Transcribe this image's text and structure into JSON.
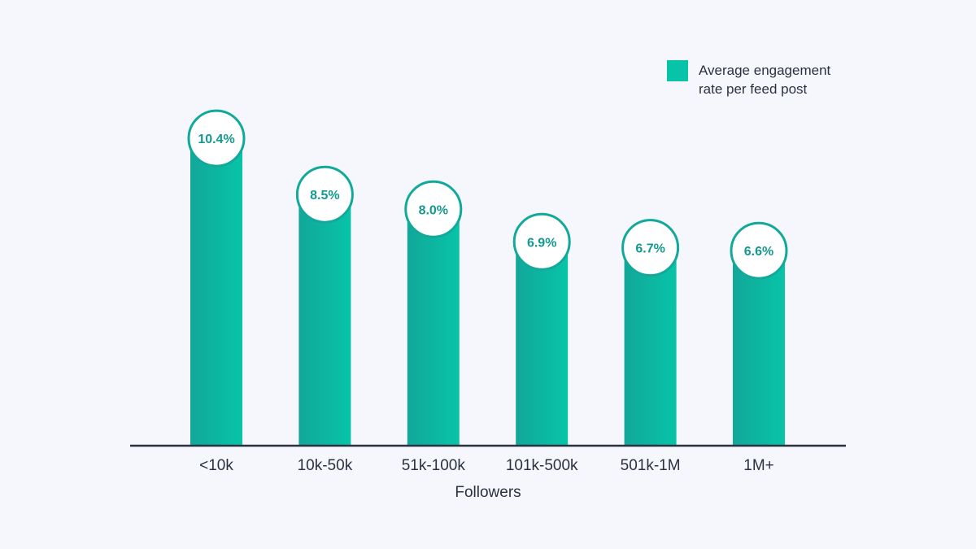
{
  "chart_data": {
    "type": "bar",
    "categories": [
      "<10k",
      "10k-50k",
      "51k-100k",
      "101k-500k",
      "501k-1M",
      "1M+"
    ],
    "series": [
      {
        "name": "Average engagement rate per feed post",
        "values": [
          10.4,
          8.5,
          8.0,
          6.9,
          6.7,
          6.6
        ]
      }
    ],
    "value_labels": [
      "10.4%",
      "8.5%",
      "8.0%",
      "6.9%",
      "6.7%",
      "6.6%"
    ],
    "xlabel": "Followers",
    "ylabel": "",
    "ylim": [
      0,
      12
    ],
    "grid": false,
    "legend": {
      "position": "top-right",
      "lines": [
        "Average engagement",
        "rate per feed post"
      ]
    },
    "colors": {
      "background": "#f5f7fc",
      "bar_start": "#12a79a",
      "bar_end": "#07c4a8",
      "label_ring": "#13a99a",
      "label_text": "#14998f",
      "axis": "#2b3141",
      "text": "#2b3141"
    }
  }
}
